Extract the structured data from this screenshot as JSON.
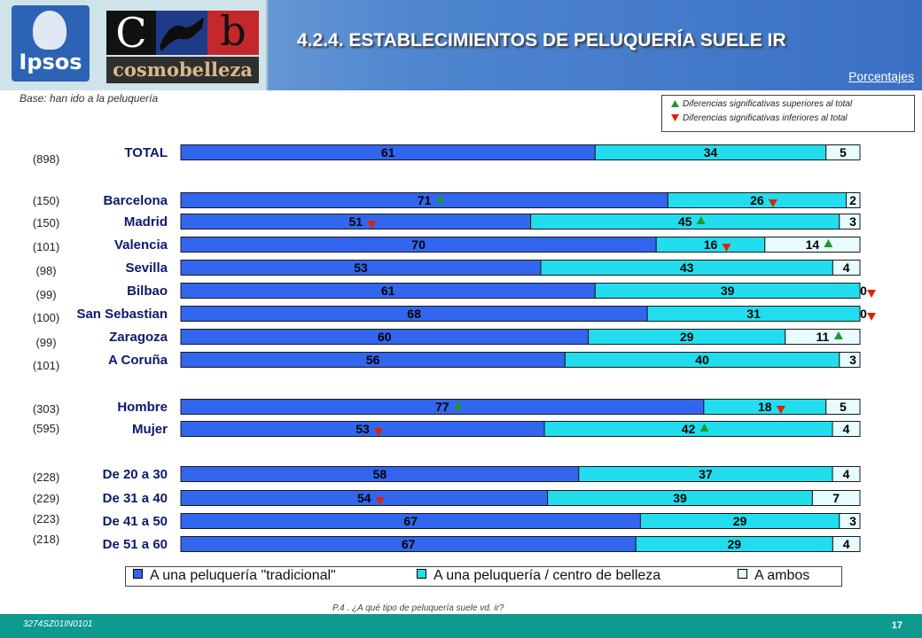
{
  "header": {
    "title": "4.2.4. ESTABLECIMIENTOS DE PELUQUERÍA SUELE IR",
    "units": "Porcentajes",
    "logo_ipsos": "Ipsos",
    "logo_cb_letter_c": "C",
    "logo_cb_letter_b": "b",
    "logo_cosmobelleza": "cosmobelleza"
  },
  "base_note": "Base: han ido a la peluquería",
  "significance_legend": {
    "up": "Diferencias significativas superiores al total",
    "down": "Diferencias significativas inferiores al total"
  },
  "colors": {
    "tradicional": "#3366ee",
    "centro_belleza": "#22ddee",
    "ambos": "#e6fcff",
    "arrow_up": "#1a9a2a",
    "arrow_down": "#dd2200"
  },
  "chart_data": {
    "type": "bar",
    "orientation": "horizontal",
    "stacked": true,
    "xlim": [
      0,
      100
    ],
    "series": [
      {
        "name": "A una peluquería \"tradicional\""
      },
      {
        "name": "A una peluquería / centro de belleza"
      },
      {
        "name": "A ambos"
      }
    ],
    "rows": [
      {
        "label": "TOTAL",
        "n": "(898)",
        "values": [
          61,
          34,
          5
        ],
        "sig": [
          null,
          null,
          null
        ]
      },
      {
        "label": "Barcelona",
        "n": "(150)",
        "values": [
          71,
          26,
          2
        ],
        "sig": [
          "up",
          "down",
          null
        ]
      },
      {
        "label": "Madrid",
        "n": "(150)",
        "values": [
          51,
          45,
          3
        ],
        "sig": [
          "down",
          "up",
          null
        ]
      },
      {
        "label": "Valencia",
        "n": "(101)",
        "values": [
          70,
          16,
          14
        ],
        "sig": [
          null,
          "down",
          "up"
        ]
      },
      {
        "label": "Sevilla",
        "n": "(98)",
        "values": [
          53,
          43,
          4
        ],
        "sig": [
          null,
          null,
          null
        ]
      },
      {
        "label": "Bilbao",
        "n": "(99)",
        "values": [
          61,
          39,
          0
        ],
        "sig": [
          null,
          null,
          "down"
        ]
      },
      {
        "label": "San Sebastian",
        "n": "(100)",
        "values": [
          68,
          31,
          0
        ],
        "sig": [
          null,
          null,
          "down"
        ]
      },
      {
        "label": "Zaragoza",
        "n": "(99)",
        "values": [
          60,
          29,
          11
        ],
        "sig": [
          null,
          null,
          "up"
        ]
      },
      {
        "label": "A Coruña",
        "n": "(101)",
        "values": [
          56,
          40,
          3
        ],
        "sig": [
          null,
          null,
          null
        ]
      },
      {
        "label": "Hombre",
        "n": "(303)",
        "values": [
          77,
          18,
          5
        ],
        "sig": [
          "up",
          "down",
          null
        ]
      },
      {
        "label": "Mujer",
        "n": "(595)",
        "values": [
          53,
          42,
          4
        ],
        "sig": [
          "down",
          "up",
          null
        ]
      },
      {
        "label": "De 20 a 30",
        "n": "(228)",
        "values": [
          58,
          37,
          4
        ],
        "sig": [
          null,
          null,
          null
        ]
      },
      {
        "label": "De 31 a 40",
        "n": "(229)",
        "values": [
          54,
          39,
          7
        ],
        "sig": [
          "down",
          null,
          null
        ]
      },
      {
        "label": "De 41 a 50",
        "n": "(223)",
        "values": [
          67,
          29,
          3
        ],
        "sig": [
          null,
          null,
          null
        ]
      },
      {
        "label": "De 51 a 60",
        "n": "(218)",
        "values": [
          67,
          29,
          4
        ],
        "sig": [
          null,
          null,
          null
        ]
      }
    ]
  },
  "question": "P.4 .     ¿A qué tipo de peluquería suele vd. ir?",
  "footer": {
    "code": "3274SZ01IN0101",
    "page": "17"
  }
}
